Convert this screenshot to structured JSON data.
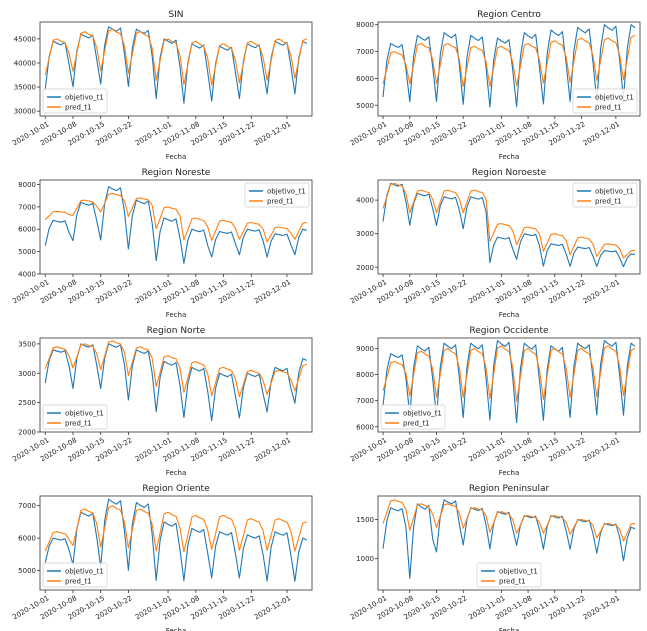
{
  "colors": {
    "objetivo": "#1f77b4",
    "pred": "#ff7f0e"
  },
  "chart_data": [
    {
      "type": "line",
      "title": "SIN",
      "xlabel": "Fecha",
      "ylabel": "",
      "ylim": [
        29000,
        48500
      ],
      "yticks": [
        30000,
        35000,
        40000,
        45000
      ],
      "ytick_labels": [
        "30000",
        "35000",
        "40000",
        "45000"
      ],
      "x_range": [
        "2020-10-01",
        "2020-12-06"
      ],
      "xticks": [
        "2020-10-01",
        "2020-10-08",
        "2020-10-15",
        "2020-10-22",
        "2020-11-01",
        "2020-11-08",
        "2020-11-15",
        "2020-11-22",
        "2020-12-01"
      ],
      "legend_position": "lower-left",
      "series": [
        {
          "name": "objetivo_t1",
          "color": "#1f77b4",
          "weekly_high": [
            44500,
            46000,
            47500,
            47000,
            45000,
            44000,
            43500,
            44000,
            44500,
            44500
          ],
          "weekly_low": [
            34000,
            34500,
            35000,
            34500,
            32000,
            31000,
            31500,
            32000,
            33000,
            33000
          ]
        },
        {
          "name": "pred_t1",
          "color": "#ff7f0e",
          "weekly_high": [
            45000,
            46500,
            47000,
            46500,
            45000,
            44500,
            44000,
            44500,
            45000,
            45000
          ],
          "weekly_low": [
            35000,
            35500,
            35500,
            35000,
            33500,
            32500,
            32500,
            33000,
            33500,
            34000
          ]
        }
      ]
    },
    {
      "type": "line",
      "title": "Region Centro",
      "xlabel": "Fecha",
      "ylabel": "",
      "ylim": [
        4600,
        8100
      ],
      "yticks": [
        5000,
        6000,
        7000,
        8000
      ],
      "ytick_labels": [
        "5000",
        "6000",
        "7000",
        "8000"
      ],
      "x_range": [
        "2020-10-01",
        "2020-12-06"
      ],
      "xticks": [
        "2020-10-01",
        "2020-10-08",
        "2020-10-15",
        "2020-10-22",
        "2020-11-01",
        "2020-11-08",
        "2020-11-15",
        "2020-11-22",
        "2020-12-01"
      ],
      "legend_position": "lower-right",
      "series": [
        {
          "name": "objetivo_t1",
          "color": "#1f77b4",
          "weekly_high": [
            7300,
            7600,
            7700,
            7600,
            7500,
            7700,
            7800,
            7900,
            8000,
            8000
          ],
          "weekly_low": [
            5200,
            5000,
            5000,
            4900,
            4800,
            4800,
            4900,
            5000,
            5000,
            5100
          ]
        },
        {
          "name": "pred_t1",
          "color": "#ff7f0e",
          "weekly_high": [
            7000,
            7300,
            7300,
            7200,
            7200,
            7300,
            7400,
            7500,
            7500,
            7600
          ],
          "weekly_low": [
            5400,
            5300,
            5300,
            5200,
            5200,
            5200,
            5300,
            5300,
            5400,
            5400
          ]
        }
      ]
    },
    {
      "type": "line",
      "title": "Region Noreste",
      "xlabel": "Fecha",
      "ylabel": "",
      "ylim": [
        4000,
        8200
      ],
      "yticks": [
        4000,
        5000,
        6000,
        7000,
        8000
      ],
      "ytick_labels": [
        "4000",
        "5000",
        "6000",
        "7000",
        "8000"
      ],
      "x_range": [
        "2020-10-01",
        "2020-12-06"
      ],
      "xticks": [
        "2020-10-01",
        "2020-10-08",
        "2020-10-15",
        "2020-10-22",
        "2020-11-01",
        "2020-11-08",
        "2020-11-15",
        "2020-11-22",
        "2020-12-01"
      ],
      "legend_position": "upper-right",
      "series": [
        {
          "name": "objetivo_t1",
          "color": "#1f77b4",
          "weekly_high": [
            6400,
            7200,
            7900,
            7300,
            6500,
            6000,
            5900,
            6000,
            5800,
            6000
          ],
          "weekly_low": [
            5200,
            5400,
            5400,
            5000,
            4500,
            4400,
            4700,
            4800,
            4700,
            4800
          ]
        },
        {
          "name": "pred_t1",
          "color": "#ff7f0e",
          "weekly_high": [
            6800,
            7300,
            7600,
            7400,
            7000,
            6500,
            6400,
            6300,
            6100,
            6300
          ],
          "weekly_low": [
            6300,
            6400,
            6500,
            6300,
            5700,
            5200,
            5200,
            5300,
            5200,
            5300
          ]
        }
      ]
    },
    {
      "type": "line",
      "title": "Region Noroeste",
      "xlabel": "Fecha",
      "ylabel": "",
      "ylim": [
        1800,
        4600
      ],
      "yticks": [
        2000,
        3000,
        4000
      ],
      "ytick_labels": [
        "2000",
        "3000",
        "4000"
      ],
      "x_range": [
        "2020-10-01",
        "2020-12-06"
      ],
      "xticks": [
        "2020-10-01",
        "2020-10-08",
        "2020-10-15",
        "2020-10-22",
        "2020-11-01",
        "2020-11-08",
        "2020-11-15",
        "2020-11-22",
        "2020-12-01"
      ],
      "legend_position": "upper-right",
      "series": [
        {
          "name": "objetivo_t1",
          "color": "#1f77b4",
          "weekly_high": [
            4500,
            4200,
            4100,
            4100,
            2900,
            3000,
            2700,
            2600,
            2500,
            2400
          ],
          "weekly_low": [
            3300,
            3200,
            3200,
            3100,
            2100,
            2200,
            2000,
            2000,
            2000,
            2000
          ]
        },
        {
          "name": "pred_t1",
          "color": "#ff7f0e",
          "weekly_high": [
            4500,
            4300,
            4300,
            4300,
            3300,
            3200,
            3000,
            2900,
            2700,
            2500
          ],
          "weekly_low": [
            3500,
            3400,
            3400,
            3400,
            2600,
            2500,
            2300,
            2200,
            2200,
            2200
          ]
        }
      ]
    },
    {
      "type": "line",
      "title": "Region Norte",
      "xlabel": "Fecha",
      "ylabel": "",
      "ylim": [
        2000,
        3600
      ],
      "yticks": [
        2000,
        2500,
        3000,
        3500
      ],
      "ytick_labels": [
        "2000",
        "2500",
        "3000",
        "3500"
      ],
      "x_range": [
        "2020-10-01",
        "2020-12-06"
      ],
      "xticks": [
        "2020-10-01",
        "2020-10-08",
        "2020-10-15",
        "2020-10-22",
        "2020-11-01",
        "2020-11-08",
        "2020-11-15",
        "2020-11-22",
        "2020-12-01"
      ],
      "legend_position": "lower-left",
      "series": [
        {
          "name": "objetivo_t1",
          "color": "#1f77b4",
          "weekly_high": [
            3400,
            3500,
            3500,
            3400,
            3200,
            3100,
            3000,
            3000,
            3100,
            3250
          ],
          "weekly_low": [
            2800,
            2700,
            2700,
            2500,
            2300,
            2200,
            2150,
            2200,
            2300,
            2450
          ]
        },
        {
          "name": "pred_t1",
          "color": "#ff7f0e",
          "weekly_high": [
            3450,
            3500,
            3550,
            3450,
            3300,
            3200,
            3100,
            3050,
            3050,
            3150
          ],
          "weekly_low": [
            2950,
            2950,
            2900,
            2800,
            2600,
            2500,
            2450,
            2450,
            2500,
            2550
          ]
        }
      ]
    },
    {
      "type": "line",
      "title": "Region Occidente",
      "xlabel": "Fecha",
      "ylabel": "",
      "ylim": [
        5800,
        9400
      ],
      "yticks": [
        6000,
        7000,
        8000,
        9000
      ],
      "ytick_labels": [
        "6000",
        "7000",
        "8000",
        "9000"
      ],
      "x_range": [
        "2020-10-01",
        "2020-12-06"
      ],
      "xticks": [
        "2020-10-01",
        "2020-10-08",
        "2020-10-15",
        "2020-10-22",
        "2020-11-01",
        "2020-11-08",
        "2020-11-15",
        "2020-11-22",
        "2020-12-01"
      ],
      "legend_position": "lower-left",
      "series": [
        {
          "name": "objetivo_t1",
          "color": "#1f77b4",
          "weekly_high": [
            8800,
            9100,
            9200,
            9200,
            9300,
            9200,
            9100,
            9200,
            9300,
            9200
          ],
          "weekly_low": [
            6700,
            6300,
            6200,
            6200,
            6100,
            6000,
            6100,
            6200,
            6300,
            6300
          ]
        },
        {
          "name": "pred_t1",
          "color": "#ff7f0e",
          "weekly_high": [
            8500,
            8900,
            9000,
            9000,
            9100,
            9000,
            9000,
            9000,
            9100,
            9000
          ],
          "weekly_low": [
            7000,
            6600,
            6500,
            6500,
            6400,
            6300,
            6400,
            6500,
            6500,
            6600
          ]
        }
      ]
    },
    {
      "type": "line",
      "title": "Region Oriente",
      "xlabel": "Fecha",
      "ylabel": "",
      "ylim": [
        4400,
        7300
      ],
      "yticks": [
        5000,
        6000,
        7000
      ],
      "ytick_labels": [
        "5000",
        "6000",
        "7000"
      ],
      "x_range": [
        "2020-10-01",
        "2020-12-06"
      ],
      "xticks": [
        "2020-10-01",
        "2020-10-08",
        "2020-10-15",
        "2020-10-22",
        "2020-11-01",
        "2020-11-08",
        "2020-11-15",
        "2020-11-22",
        "2020-12-01"
      ],
      "legend_position": "lower-left",
      "series": [
        {
          "name": "objetivo_t1",
          "color": "#1f77b4",
          "weekly_high": [
            6000,
            6800,
            7200,
            7100,
            6500,
            6300,
            6200,
            6100,
            6200,
            6000
          ],
          "weekly_low": [
            5200,
            5100,
            5000,
            4900,
            4600,
            4600,
            4700,
            4700,
            4600,
            4600
          ]
        },
        {
          "name": "pred_t1",
          "color": "#ff7f0e",
          "weekly_high": [
            6200,
            6900,
            7000,
            6900,
            6800,
            6700,
            6700,
            6600,
            6600,
            6500
          ],
          "weekly_low": [
            5400,
            5400,
            5300,
            5300,
            5200,
            5200,
            5300,
            5300,
            5300,
            5300
          ]
        }
      ]
    },
    {
      "type": "line",
      "title": "Region Peninsular",
      "xlabel": "Fecha",
      "ylabel": "",
      "ylim": [
        600,
        1800
      ],
      "yticks": [
        1000,
        1500
      ],
      "ytick_labels": [
        "1000",
        "1500"
      ],
      "x_range": [
        "2020-10-01",
        "2020-12-06"
      ],
      "xticks": [
        "2020-10-01",
        "2020-10-08",
        "2020-10-15",
        "2020-10-22",
        "2020-11-01",
        "2020-11-08",
        "2020-11-15",
        "2020-11-22",
        "2020-12-01"
      ],
      "legend_position": "lower-center",
      "series": [
        {
          "name": "objetivo_t1",
          "color": "#1f77b4",
          "weekly_high": [
            1650,
            1700,
            1750,
            1650,
            1600,
            1550,
            1550,
            1500,
            1450,
            1400
          ],
          "weekly_low": [
            1100,
            700,
            1050,
            1150,
            1100,
            1150,
            1100,
            1100,
            1050,
            950
          ]
        },
        {
          "name": "pred_t1",
          "color": "#ff7f0e",
          "weekly_high": [
            1750,
            1700,
            1700,
            1650,
            1600,
            1550,
            1550,
            1500,
            1450,
            1450
          ],
          "weekly_low": [
            1350,
            1250,
            1300,
            1300,
            1250,
            1250,
            1250,
            1250,
            1200,
            1150
          ]
        }
      ]
    }
  ]
}
